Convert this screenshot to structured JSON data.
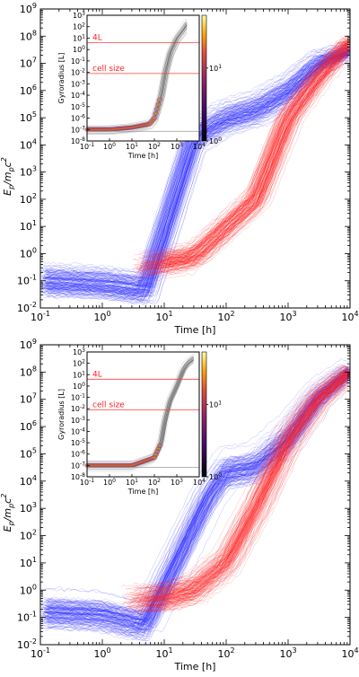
{
  "chart_data": [
    {
      "type": "scatter",
      "panel": "top",
      "xlabel": "Time [h]",
      "ylabel": "E_p/m_pc^2",
      "x_scale": "log",
      "y_scale": "log",
      "xlim": [
        0.1,
        10000
      ],
      "ylim": [
        0.01,
        1000000000
      ],
      "x_ticks": [
        "10^-1",
        "10^0",
        "10^1",
        "10^2",
        "10^3",
        "10^4"
      ],
      "y_ticks": [
        "10^-2",
        "10^-1",
        "10^0",
        "10^1",
        "10^2",
        "10^3",
        "10^4",
        "10^5",
        "10^6",
        "10^7",
        "10^8",
        "10^9"
      ],
      "series": [
        {
          "color": "#2a2aff",
          "t": [
            0.1,
            1,
            5,
            30,
            100,
            300,
            1000,
            3000,
            10000
          ],
          "E": [
            0.1,
            0.08,
            0.05,
            20000,
            100000,
            200000,
            1000000,
            10000000,
            30000000
          ]
        },
        {
          "color": "#ff2020",
          "t": [
            3,
            10,
            30,
            100,
            300,
            1000,
            3000,
            10000
          ],
          "E": [
            0.3,
            0.5,
            0.8,
            10,
            100,
            100000,
            3000000,
            60000000
          ]
        }
      ],
      "inset": {
        "type": "heatmap",
        "xlabel": "Time [h]",
        "ylabel": "Gyroradius [L]",
        "xlim": [
          0.1,
          10000
        ],
        "ylim": [
          1e-08,
          1000
        ],
        "x_ticks": [
          "10^-1",
          "10^0",
          "10^1",
          "10^2",
          "10^3",
          "10^4"
        ],
        "y_ticks": [
          "10^-8",
          "10^-7",
          "10^-6",
          "10^-5",
          "10^-4",
          "10^-3",
          "10^-2",
          "10^-1",
          "10^0",
          "10^1",
          "10^2",
          "10^3"
        ],
        "lines": [
          {
            "label": "4L",
            "y": 4
          },
          {
            "label": "cell size",
            "y": 0.008
          }
        ],
        "colorbar_ticks": [
          "10^0",
          "10^1"
        ],
        "trend": {
          "t": [
            0.1,
            1,
            10,
            60,
            100,
            200,
            300,
            500,
            1000,
            2000,
            3000
          ],
          "r": [
            1e-07,
            1e-07,
            1.5e-07,
            3e-07,
            1e-06,
            0.0001,
            0.01,
            0.5,
            10,
            60,
            200
          ]
        }
      }
    },
    {
      "type": "scatter",
      "panel": "bottom",
      "xlabel": "Time [h]",
      "ylabel": "E_p/m_pc^2",
      "x_scale": "log",
      "y_scale": "log",
      "xlim": [
        0.1,
        10000
      ],
      "ylim": [
        0.01,
        1000000000
      ],
      "x_ticks": [
        "10^-1",
        "10^0",
        "10^1",
        "10^2",
        "10^3",
        "10^4"
      ],
      "y_ticks": [
        "10^-2",
        "10^-1",
        "10^0",
        "10^1",
        "10^2",
        "10^3",
        "10^4",
        "10^5",
        "10^6",
        "10^7",
        "10^8",
        "10^9"
      ],
      "series": [
        {
          "color": "#2a2aff",
          "t": [
            0.1,
            1,
            5,
            50,
            100,
            300,
            1000,
            3000,
            10000
          ],
          "E": [
            0.15,
            0.12,
            0.05,
            2000,
            20000,
            30000,
            300000,
            10000000,
            100000000
          ]
        },
        {
          "color": "#ff2020",
          "t": [
            2,
            10,
            30,
            100,
            300,
            1000,
            3000,
            10000
          ],
          "E": [
            0.4,
            0.5,
            1,
            10,
            1000,
            300000,
            10000000,
            100000000
          ]
        }
      ],
      "inset": {
        "type": "heatmap",
        "xlabel": "Time [h]",
        "ylabel": "Gyroradius [L]",
        "xlim": [
          0.1,
          10000
        ],
        "ylim": [
          1e-08,
          1000
        ],
        "x_ticks": [
          "10^-1",
          "10^0",
          "10^1",
          "10^2",
          "10^3",
          "10^4"
        ],
        "y_ticks": [
          "10^-8",
          "10^-7",
          "10^-6",
          "10^-5",
          "10^-4",
          "10^-3",
          "10^-2",
          "10^-1",
          "10^0",
          "10^1",
          "10^2",
          "10^3"
        ],
        "lines": [
          {
            "label": "4L",
            "y": 4
          },
          {
            "label": "cell size",
            "y": 0.008
          }
        ],
        "colorbar_ticks": [
          "10^0",
          "10^1"
        ],
        "trend": {
          "t": [
            0.1,
            1,
            10,
            100,
            200,
            300,
            500,
            1000,
            2000,
            3000,
            6000
          ],
          "r": [
            1e-07,
            1e-07,
            1e-07,
            5e-07,
            1e-05,
            0.001,
            0.05,
            1,
            30,
            100,
            300
          ]
        }
      }
    }
  ]
}
